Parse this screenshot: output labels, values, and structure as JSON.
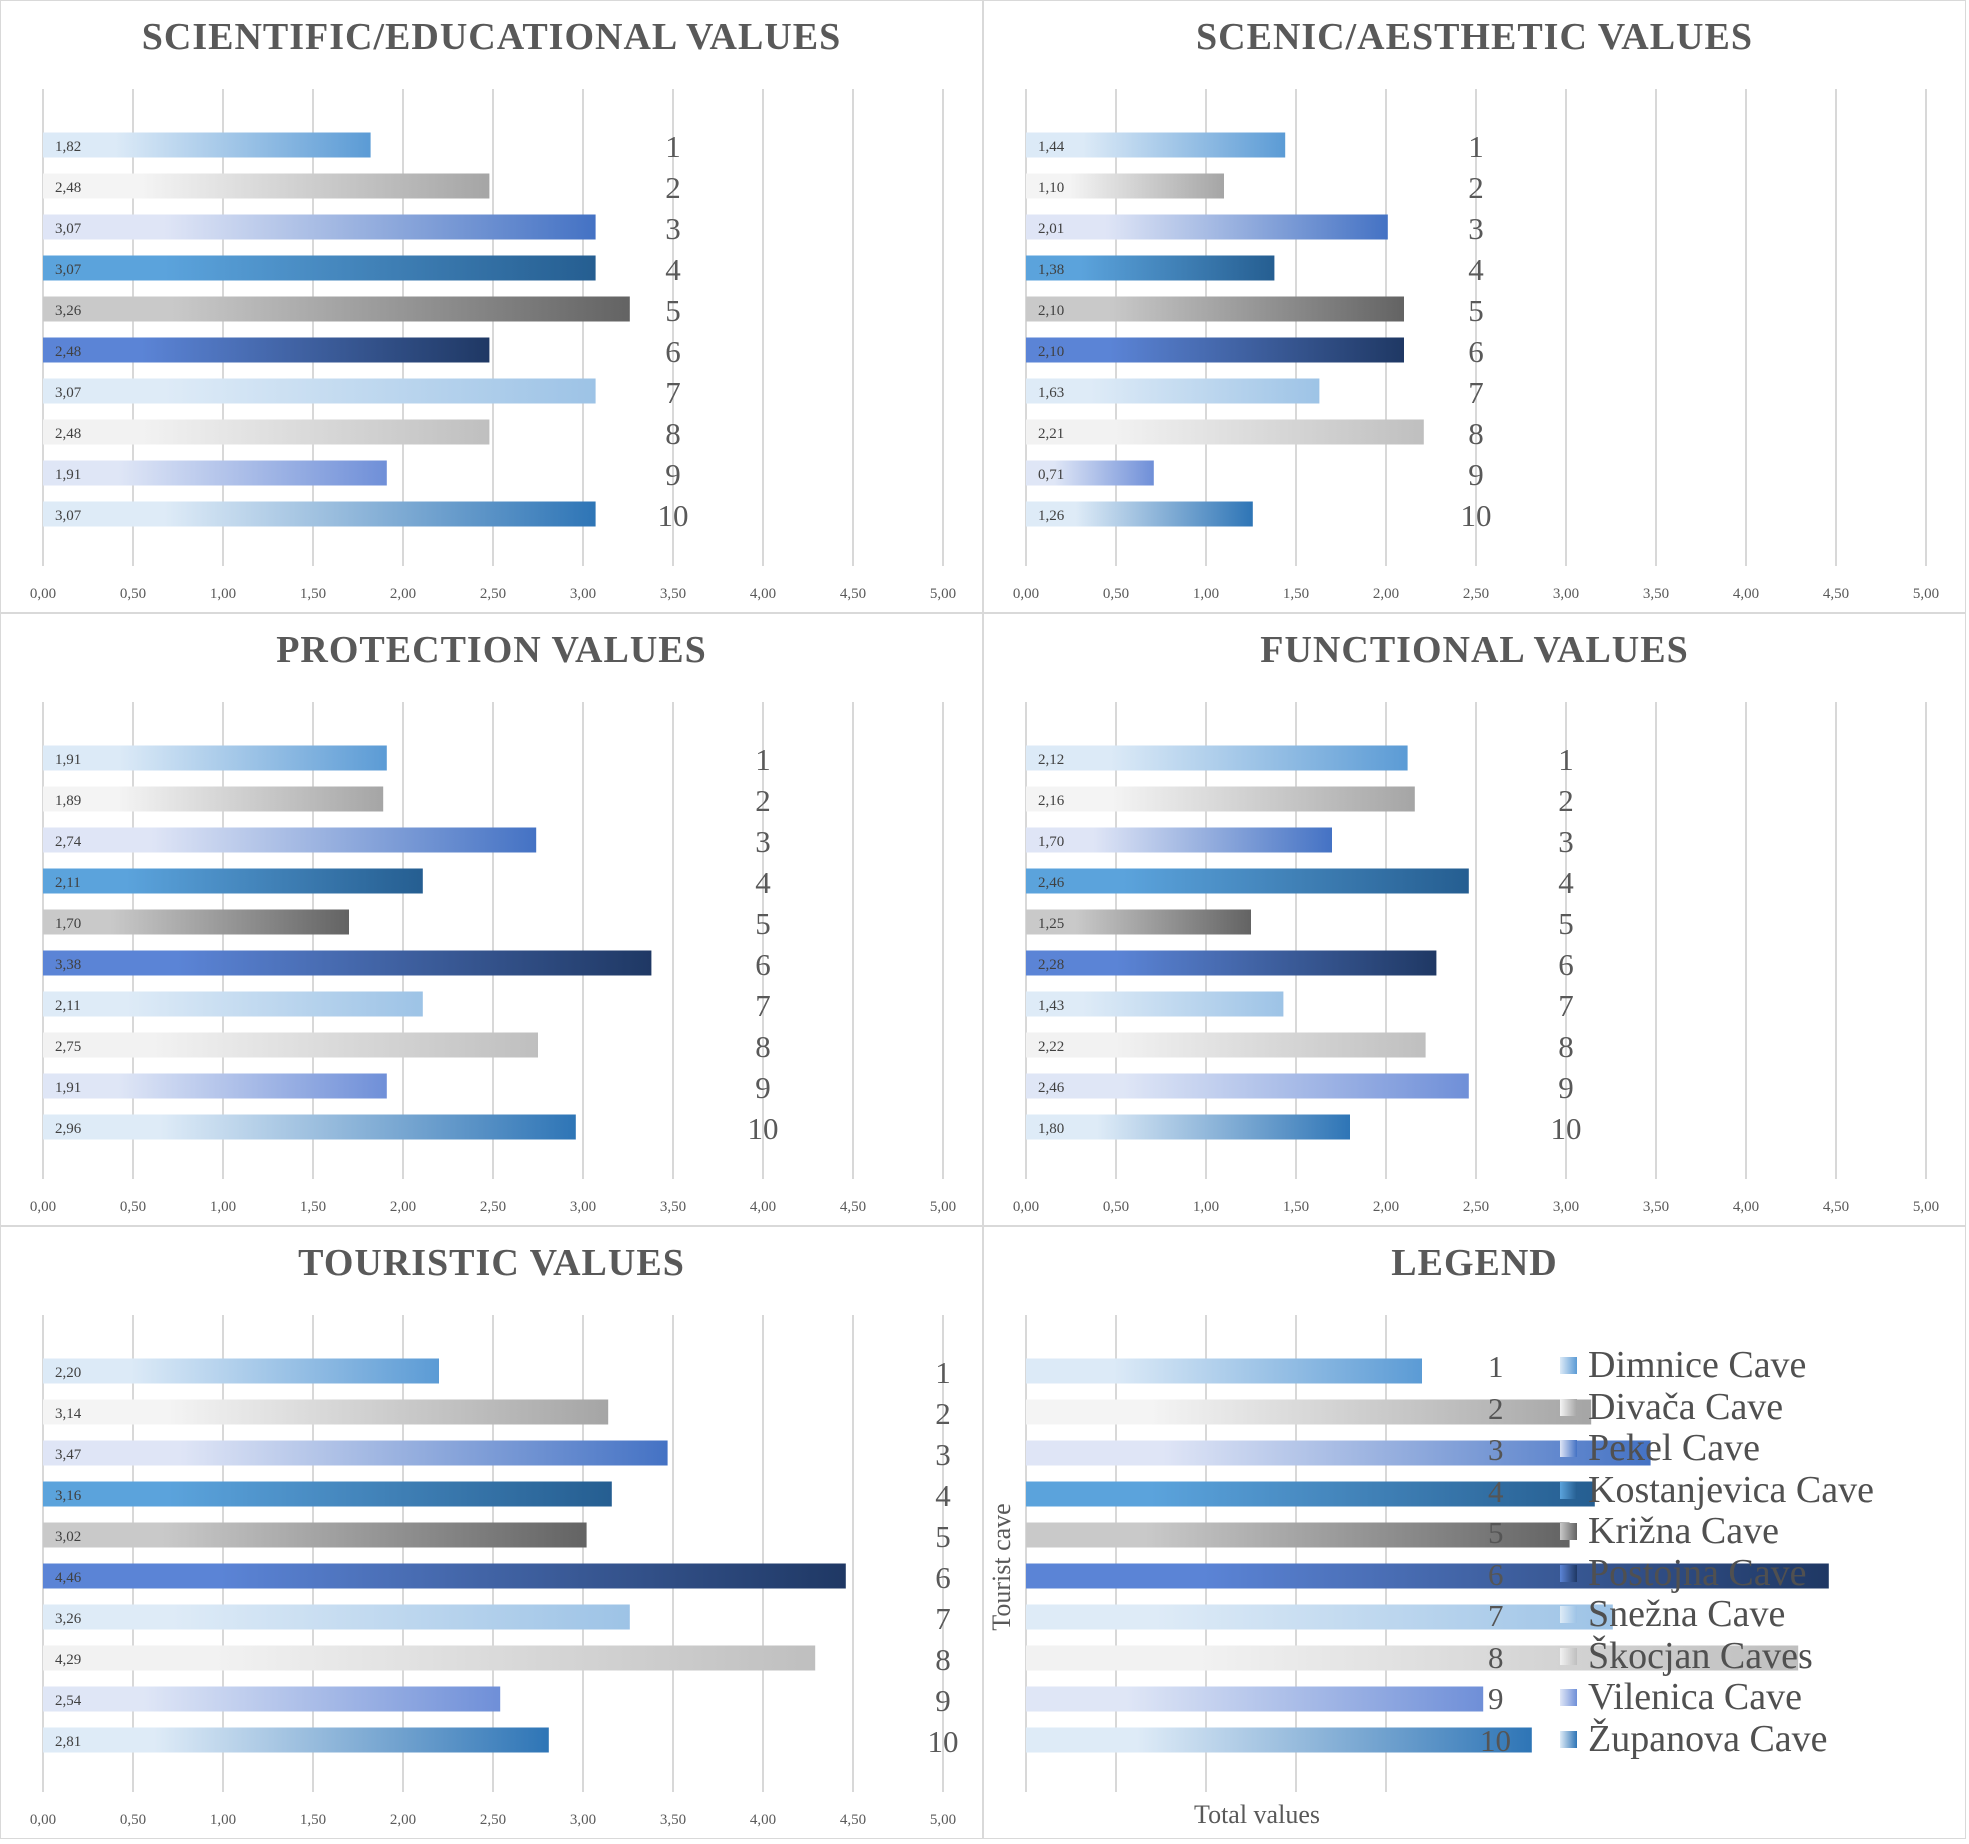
{
  "figure": {
    "legend_title": "LEGEND",
    "legend_axis_y": "Tourist cave",
    "legend_axis_x": "Total values"
  },
  "caves": [
    {
      "num": "1",
      "name": "Dimnice Cave",
      "color_from": "#dceaf7",
      "color_to": "#5b9bd5"
    },
    {
      "num": "2",
      "name": "Divača Cave",
      "color_from": "#f4f4f4",
      "color_to": "#a5a5a5"
    },
    {
      "num": "3",
      "name": "Pekel Cave",
      "color_from": "#dfe5f6",
      "color_to": "#4472c4"
    },
    {
      "num": "4",
      "name": "Kostanjevica Cave",
      "color_from": "#5ba3dc",
      "color_to": "#255e91"
    },
    {
      "num": "5",
      "name": "Križna Cave",
      "color_from": "#c9c9c9",
      "color_to": "#636363"
    },
    {
      "num": "6",
      "name": "Postojna Cave",
      "color_from": "#5b84d6",
      "color_to": "#1f3864"
    },
    {
      "num": "7",
      "name": "Snežna Cave",
      "color_from": "#deebf7",
      "color_to": "#9dc3e6"
    },
    {
      "num": "8",
      "name": "Škocjan Caves",
      "color_from": "#f2f2f2",
      "color_to": "#bfbfbf"
    },
    {
      "num": "9",
      "name": "Vilenica Cave",
      "color_from": "#dfe6f6",
      "color_to": "#6f8fd8"
    },
    {
      "num": "10",
      "name": "Županova Cave",
      "color_from": "#deebf7",
      "color_to": "#2e75b6"
    }
  ],
  "chart_data": [
    {
      "type": "bar",
      "orientation": "horizontal",
      "title": "SCIENTIFIC/EDUCATIONAL VALUES",
      "categories": [
        "1",
        "2",
        "3",
        "4",
        "5",
        "6",
        "7",
        "8",
        "9",
        "10"
      ],
      "values": [
        1.82,
        2.48,
        3.07,
        3.07,
        3.26,
        2.48,
        3.07,
        2.48,
        1.91,
        3.07
      ],
      "value_labels": [
        "1,82",
        "2,48",
        "3,07",
        "3,07",
        "3,26",
        "2,48",
        "3,07",
        "2,48",
        "1,91",
        "3,07"
      ],
      "xlim": [
        0,
        5
      ],
      "ticks": [
        "0,00",
        "0,50",
        "1,00",
        "1,50",
        "2,00",
        "2,50",
        "3,00",
        "3,50",
        "4,00",
        "4,50",
        "5,00"
      ],
      "category_label_at": 3.5
    },
    {
      "type": "bar",
      "orientation": "horizontal",
      "title": "SCENIC/AESTHETIC VALUES",
      "categories": [
        "1",
        "2",
        "3",
        "4",
        "5",
        "6",
        "7",
        "8",
        "9",
        "10"
      ],
      "values": [
        1.44,
        1.1,
        2.01,
        1.38,
        2.1,
        2.1,
        1.63,
        2.21,
        0.71,
        1.26
      ],
      "value_labels": [
        "1,44",
        "1,10",
        "2,01",
        "1,38",
        "2,10",
        "2,10",
        "1,63",
        "2,21",
        "0,71",
        "1,26"
      ],
      "xlim": [
        0,
        5
      ],
      "ticks": [
        "0,00",
        "0,50",
        "1,00",
        "1,50",
        "2,00",
        "2,50",
        "3,00",
        "3,50",
        "4,00",
        "4,50",
        "5,00"
      ],
      "category_label_at": 2.5
    },
    {
      "type": "bar",
      "orientation": "horizontal",
      "title": "PROTECTION VALUES",
      "categories": [
        "1",
        "2",
        "3",
        "4",
        "5",
        "6",
        "7",
        "8",
        "9",
        "10"
      ],
      "values": [
        1.91,
        1.89,
        2.74,
        2.11,
        1.7,
        3.38,
        2.11,
        2.75,
        1.91,
        2.96
      ],
      "value_labels": [
        "1,91",
        "1,89",
        "2,74",
        "2,11",
        "1,70",
        "3,38",
        "2,11",
        "2,75",
        "1,91",
        "2,96"
      ],
      "xlim": [
        0,
        5
      ],
      "ticks": [
        "0,00",
        "0,50",
        "1,00",
        "1,50",
        "2,00",
        "2,50",
        "3,00",
        "3,50",
        "4,00",
        "4,50",
        "5,00"
      ],
      "category_label_at": 4.0
    },
    {
      "type": "bar",
      "orientation": "horizontal",
      "title": "FUNCTIONAL VALUES",
      "categories": [
        "1",
        "2",
        "3",
        "4",
        "5",
        "6",
        "7",
        "8",
        "9",
        "10"
      ],
      "values": [
        2.12,
        2.16,
        1.7,
        2.46,
        1.25,
        2.28,
        1.43,
        2.22,
        2.46,
        1.8
      ],
      "value_labels": [
        "2,12",
        "2,16",
        "1,70",
        "2,46",
        "1,25",
        "2,28",
        "1,43",
        "2,22",
        "2,46",
        "1,80"
      ],
      "xlim": [
        0,
        5
      ],
      "ticks": [
        "0,00",
        "0,50",
        "1,00",
        "1,50",
        "2,00",
        "2,50",
        "3,00",
        "3,50",
        "4,00",
        "4,50",
        "5,00"
      ],
      "category_label_at": 3.0
    },
    {
      "type": "bar",
      "orientation": "horizontal",
      "title": "TOURISTIC VALUES",
      "categories": [
        "1",
        "2",
        "3",
        "4",
        "5",
        "6",
        "7",
        "8",
        "9",
        "10"
      ],
      "values": [
        2.2,
        3.14,
        3.47,
        3.16,
        3.02,
        4.46,
        3.26,
        4.29,
        2.54,
        2.81
      ],
      "value_labels": [
        "2,20",
        "3,14",
        "3,47",
        "3,16",
        "3,02",
        "4,46",
        "3,26",
        "4,29",
        "2,54",
        "2,81"
      ],
      "xlim": [
        0,
        5
      ],
      "ticks": [
        "0,00",
        "0,50",
        "1,00",
        "1,50",
        "2,00",
        "2,50",
        "3,00",
        "3,50",
        "4,00",
        "4,50",
        "5,00"
      ],
      "category_label_at": 5.0
    },
    {
      "type": "bar",
      "orientation": "horizontal",
      "title": "LEGEND",
      "categories": [
        "1",
        "2",
        "3",
        "4",
        "5",
        "6",
        "7",
        "8",
        "9",
        "10"
      ],
      "values": [
        2.2,
        3.14,
        3.47,
        3.16,
        3.02,
        4.46,
        3.26,
        4.29,
        2.54,
        2.81
      ],
      "xlabel": "Total values",
      "ylabel": "Tourist cave",
      "xlim": [
        0,
        5
      ]
    }
  ]
}
